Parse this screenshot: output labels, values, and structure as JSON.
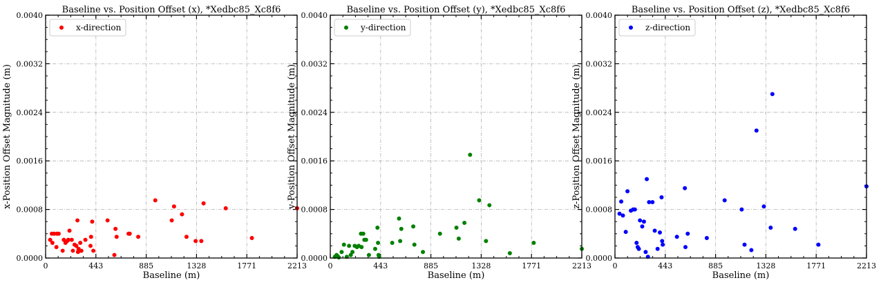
{
  "chart_data": [
    {
      "type": "scatter",
      "title": "Baseline vs. Position Offset (x), *Xedbc85_Xc8f6",
      "xlabel": "Baseline (m)",
      "ylabel": "x-Position Offset Magnitude (m)",
      "xlim": [
        0,
        2213
      ],
      "ylim": [
        0,
        0.004
      ],
      "xticks": [
        "0",
        "443",
        "885",
        "1328",
        "1771",
        "2213"
      ],
      "yticks": [
        "0.0000",
        "0.0008",
        "0.0016",
        "0.0024",
        "0.0032",
        "0.0040"
      ],
      "grid": true,
      "legend_position": "top-left",
      "series": [
        {
          "name": "x-direction",
          "color": "#ff0000",
          "x": [
            40,
            60,
            55,
            75,
            100,
            95,
            115,
            150,
            160,
            175,
            190,
            200,
            210,
            230,
            240,
            255,
            270,
            280,
            285,
            290,
            300,
            305,
            315,
            350,
            395,
            400,
            410,
            420,
            545,
            605,
            615,
            625,
            730,
            740,
            815,
            965,
            1110,
            1130,
            1200,
            1240,
            1320,
            1370,
            1390,
            1585,
            1815,
            2213
          ],
          "y": [
            0.0003,
            0.00025,
            0.0004,
            0.0004,
            0.0004,
            0.00018,
            0.0004,
            0.00012,
            0.0003,
            0.00025,
            0.00028,
            0.0003,
            0.00045,
            0.0003,
            0.00012,
            0.00022,
            0.0002,
            0.00062,
            0.0001,
            0.00015,
            0.00012,
            0.00025,
            0.00012,
            0.0003,
            0.0002,
            0.00035,
            0.0006,
            0.00012,
            0.00062,
            5e-05,
            0.00048,
            0.00035,
            0.0004,
            0.0004,
            0.00035,
            0.00095,
            0.00062,
            0.00085,
            0.00072,
            0.00035,
            0.00028,
            0.00028,
            0.0009,
            0.00082,
            0.00033,
            0.00082
          ]
        }
      ]
    },
    {
      "type": "scatter",
      "title": "Baseline vs. Position Offset (y), *Xedbc85_Xc8f6",
      "xlabel": "Baseline (m)",
      "ylabel": "y-Position Offset Magnitude (m)",
      "xlim": [
        0,
        2213
      ],
      "ylim": [
        0,
        0.004
      ],
      "xticks": [
        "0",
        "443",
        "885",
        "1328",
        "1771",
        "2213"
      ],
      "yticks": [
        "0.0000",
        "0.0008",
        "0.0016",
        "0.0024",
        "0.0032",
        "0.0040"
      ],
      "grid": true,
      "legend_position": "top-left",
      "series": [
        {
          "name": "y-direction",
          "color": "#008000",
          "x": [
            40,
            55,
            65,
            75,
            100,
            120,
            145,
            165,
            180,
            195,
            215,
            235,
            250,
            270,
            275,
            290,
            300,
            315,
            340,
            395,
            415,
            420,
            425,
            430,
            545,
            605,
            615,
            625,
            730,
            740,
            815,
            965,
            1110,
            1130,
            1180,
            1230,
            1310,
            1370,
            1400,
            1580,
            1790,
            2213
          ],
          "y": [
            2e-05,
            5e-05,
            3e-05,
            1e-05,
            0.0001,
            0.00022,
            2e-05,
            0.0002,
            5e-05,
            0.0001,
            0.0002,
            0.00018,
            0.0002,
            0.0004,
            0.00018,
            0.0004,
            0.0003,
            0.0003,
            5e-05,
            0.00015,
            0.0005,
            0.00025,
            5e-05,
            2e-05,
            0.00025,
            0.00065,
            0.00028,
            0.00048,
            0.00052,
            0.00022,
            0.0001,
            0.0004,
            0.0005,
            0.00032,
            0.00058,
            0.0017,
            0.00095,
            0.00028,
            0.00087,
            8e-05,
            0.00025,
            0.00015
          ]
        }
      ]
    },
    {
      "type": "scatter",
      "title": "Baseline vs. Position Offset (z), *Xedbc85_Xc8f6",
      "xlabel": "Baseline (m)",
      "ylabel": "z-Position Offset Magnitude (m)",
      "xlim": [
        0,
        2213
      ],
      "ylim": [
        0,
        0.004
      ],
      "xticks": [
        "0",
        "443",
        "885",
        "1328",
        "1771",
        "2213"
      ],
      "yticks": [
        "0.0000",
        "0.0008",
        "0.0016",
        "0.0024",
        "0.0032",
        "0.0040"
      ],
      "grid": true,
      "legend_position": "top-left",
      "series": [
        {
          "name": "z-direction",
          "color": "#0000ff",
          "x": [
            40,
            55,
            70,
            95,
            110,
            140,
            160,
            175,
            190,
            200,
            210,
            220,
            240,
            255,
            270,
            280,
            290,
            300,
            330,
            350,
            375,
            395,
            410,
            415,
            420,
            545,
            615,
            620,
            640,
            808,
            965,
            1115,
            1140,
            1200,
            1245,
            1310,
            1370,
            1385,
            1585,
            1790,
            2213
          ],
          "y": [
            0.00073,
            0.00093,
            0.0007,
            0.00043,
            0.0011,
            0.00078,
            0.0008,
            0.0008,
            0.00025,
            0.00018,
            0.00015,
            0.00062,
            0.00052,
            0.0006,
            0.0001,
            0.0013,
            2e-05,
            0.00092,
            0.00092,
            0.00045,
            0.00015,
            0.00042,
            0.001,
            0.00028,
            0.00022,
            0.00035,
            0.00115,
            0.00018,
            0.0004,
            0.00033,
            0.00095,
            0.0008,
            0.00022,
            0.00013,
            0.0021,
            0.00085,
            0.0005,
            0.0027,
            0.00048,
            0.00022,
            0.00118
          ]
        }
      ]
    }
  ]
}
